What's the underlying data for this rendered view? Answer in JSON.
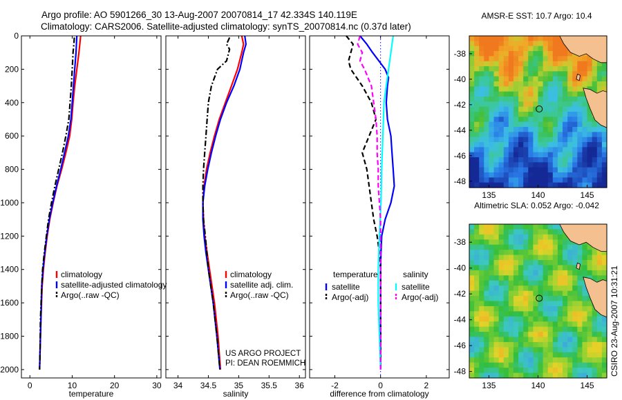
{
  "figure": {
    "title_line1": "Argo profile: AO 5901266_30 13-Aug-2007 20070814_17 42.334S 140.119E",
    "title_line2": "Climatology: CARS2006. Satellite-adjusted climatology: synTS_20070814.nc (0.37d later)",
    "credit_line1": "US ARGO PROJECT",
    "credit_line2": "PI: DEAN ROEMMICH",
    "side_label": "CSIRO 23-Aug-2007 10:31:21"
  },
  "colors": {
    "red": "#ff0000",
    "blue": "#0000ff",
    "black": "#000000",
    "cyan": "#00ffff",
    "magenta": "#ff00ff",
    "land": "#f5c090"
  },
  "chart_data": [
    {
      "type": "line",
      "xlabel": "temperature",
      "xlim": [
        -2,
        31
      ],
      "ylim": [
        2050,
        0
      ],
      "xticks": [
        0,
        10,
        20,
        30
      ],
      "xtick_labels": [
        "0",
        "10",
        "20",
        "30"
      ],
      "yticks": [
        0,
        200,
        400,
        600,
        800,
        1000,
        1200,
        1400,
        1600,
        1800,
        2000
      ],
      "ytick_labels": [
        "0",
        "200",
        "400",
        "600",
        "800",
        "1000",
        "1200",
        "1400",
        "1600",
        "1800",
        "2000"
      ],
      "legend": {
        "position": "lower-right",
        "entries": [
          "climatology",
          "satellite-adjusted climatology",
          "Argo(..raw -QC)"
        ]
      },
      "series": [
        {
          "name": "climatology",
          "color": "red",
          "style": "solid",
          "y": [
            0,
            100,
            200,
            300,
            400,
            500,
            600,
            700,
            800,
            900,
            1000,
            1100,
            1200,
            1300,
            1400,
            1500,
            1700,
            1900,
            2000
          ],
          "x": [
            12.0,
            11.6,
            11.1,
            10.6,
            10.2,
            9.9,
            9.4,
            8.5,
            7.5,
            6.4,
            5.5,
            4.7,
            4.1,
            3.6,
            3.2,
            2.9,
            2.6,
            2.4,
            2.3
          ]
        },
        {
          "name": "satellite-adjusted climatology",
          "color": "blue",
          "style": "solid",
          "y": [
            0,
            100,
            200,
            300,
            400,
            500,
            600,
            700,
            800,
            900,
            1000,
            1100,
            1200,
            1300,
            1400,
            1500,
            1700,
            1900,
            2000
          ],
          "x": [
            11.1,
            10.9,
            10.6,
            10.3,
            10.0,
            9.7,
            9.1,
            8.2,
            7.3,
            6.3,
            5.4,
            4.6,
            4.0,
            3.5,
            3.1,
            2.8,
            2.6,
            2.4,
            2.3
          ]
        },
        {
          "name": "Argo(..raw -QC)",
          "color": "black",
          "style": "dashdot",
          "y": [
            10,
            50,
            100,
            150,
            200,
            300,
            400,
            500,
            600,
            700,
            800,
            900,
            1000,
            1100,
            1200,
            1300,
            1400,
            1500,
            1700,
            1900,
            2000
          ],
          "x": [
            10.5,
            10.4,
            10.2,
            10.1,
            10.0,
            9.8,
            9.5,
            9.2,
            8.5,
            7.7,
            6.8,
            5.9,
            5.1,
            4.4,
            3.9,
            3.4,
            3.0,
            2.8,
            2.5,
            2.4,
            2.3
          ]
        }
      ]
    },
    {
      "type": "line",
      "xlabel": "salinity",
      "xlim": [
        33.8,
        36.1
      ],
      "ylim": [
        2050,
        0
      ],
      "xticks": [
        34,
        34.5,
        35,
        35.5,
        36
      ],
      "xtick_labels": [
        "34",
        "34.5",
        "35",
        "35.5",
        "36"
      ],
      "legend": {
        "position": "lower-right",
        "entries": [
          "climatology",
          "satellite adj. clim.",
          "Argo(..raw -QC)"
        ]
      },
      "series": [
        {
          "name": "climatology",
          "color": "red",
          "style": "solid",
          "y": [
            0,
            50,
            100,
            200,
            300,
            400,
            500,
            600,
            700,
            800,
            900,
            1000,
            1100,
            1200,
            1300,
            1400,
            1600,
            1800,
            2000
          ],
          "x": [
            35.05,
            35.08,
            35.05,
            34.98,
            34.88,
            34.78,
            34.68,
            34.6,
            34.53,
            34.47,
            34.43,
            34.41,
            34.42,
            34.44,
            34.48,
            34.52,
            34.6,
            34.66,
            34.7
          ]
        },
        {
          "name": "satellite adj. clim.",
          "color": "blue",
          "style": "solid",
          "y": [
            0,
            50,
            100,
            200,
            300,
            400,
            500,
            600,
            700,
            800,
            900,
            1000,
            1100,
            1200,
            1300,
            1400,
            1600,
            1800,
            2000
          ],
          "x": [
            35.1,
            35.12,
            35.08,
            35.02,
            34.92,
            34.8,
            34.7,
            34.62,
            34.55,
            34.49,
            34.44,
            34.41,
            34.41,
            34.43,
            34.46,
            34.5,
            34.58,
            34.64,
            34.69
          ]
        },
        {
          "name": "Argo(..raw -QC)",
          "color": "black",
          "style": "dashdot",
          "y": [
            10,
            50,
            80,
            150,
            200,
            300,
            400,
            500,
            600,
            700,
            800,
            900,
            1000,
            1100,
            1200,
            1400,
            1600,
            1800,
            2000
          ],
          "x": [
            34.85,
            34.8,
            34.85,
            34.8,
            34.65,
            34.55,
            34.5,
            34.48,
            34.46,
            34.44,
            34.42,
            34.41,
            34.41,
            34.42,
            34.45,
            34.5,
            34.58,
            34.64,
            34.69
          ]
        }
      ]
    },
    {
      "type": "line",
      "xlabel": "difference from climatology",
      "xlim": [
        -3.1,
        3.0
      ],
      "ylim": [
        2050,
        0
      ],
      "xticks": [
        -2,
        0,
        2
      ],
      "xtick_labels": [
        "-2",
        "0",
        "2"
      ],
      "legend": {
        "position": "lower",
        "groups": [
          {
            "title": "temperature",
            "entries": [
              "satellite",
              "Argo(-adj)"
            ]
          },
          {
            "title": "salinity",
            "entries": [
              "satellite",
              "Argo(-adj)"
            ]
          }
        ]
      },
      "series": [
        {
          "name": "temperature satellite",
          "color": "blue",
          "style": "solid",
          "y": [
            0,
            50,
            100,
            200,
            250,
            300,
            400,
            500,
            600,
            700,
            800,
            900,
            1000,
            1100,
            1200,
            1300,
            1400,
            1600,
            1800,
            2000
          ],
          "x": [
            -0.9,
            -0.6,
            -0.35,
            0.2,
            0.35,
            0.3,
            0.25,
            0.3,
            0.45,
            0.5,
            0.55,
            0.6,
            0.45,
            0.2,
            0.05,
            0.02,
            0.0,
            0.0,
            0.0,
            0.0
          ]
        },
        {
          "name": "temperature Argo(-adj)",
          "color": "black",
          "style": "dashed",
          "y": [
            0,
            50,
            100,
            150,
            200,
            300,
            400,
            500,
            600,
            700,
            800,
            900,
            1000,
            1100,
            1200,
            1300,
            1400,
            1600,
            1800,
            2000
          ],
          "x": [
            -1.5,
            -1.2,
            -1.3,
            -1.4,
            -1.3,
            -0.8,
            -0.4,
            -0.2,
            -0.5,
            -0.8,
            -0.6,
            -0.5,
            -0.4,
            -0.3,
            -0.15,
            -0.05,
            0.0,
            0.0,
            0.0,
            0.0
          ]
        },
        {
          "name": "salinity satellite",
          "color": "cyan",
          "style": "solid",
          "y": [
            0,
            50,
            100,
            200,
            300,
            400,
            600,
            800,
            1000,
            1200,
            1400,
            1600,
            1800,
            2000
          ],
          "x": [
            0.55,
            0.5,
            0.45,
            0.35,
            0.25,
            0.15,
            0.1,
            0.05,
            0.02,
            -0.05,
            -0.1,
            -0.1,
            -0.05,
            0.0
          ]
        },
        {
          "name": "salinity Argo(-adj)",
          "color": "magenta",
          "style": "dashed",
          "y": [
            0,
            50,
            100,
            150,
            200,
            300,
            400,
            500,
            600,
            700,
            800,
            900,
            1000,
            1100,
            1200,
            1400,
            1600,
            1800,
            2000
          ],
          "x": [
            -0.9,
            -1.0,
            -0.8,
            -0.9,
            -0.7,
            -0.4,
            -0.3,
            -0.2,
            -0.15,
            -0.15,
            -0.1,
            -0.1,
            -0.05,
            0.0,
            0.0,
            0.0,
            0.0,
            0.0,
            0.0
          ]
        }
      ]
    },
    {
      "type": "heatmap",
      "title": "AMSR-E SST: 10.7 Argo: 10.4",
      "xlim": [
        133,
        147
      ],
      "ylim": [
        -48.5,
        -36.6
      ],
      "xticks": [
        135,
        140,
        145
      ],
      "xtick_labels": [
        "135",
        "140",
        "145"
      ],
      "yticks": [
        -38,
        -40,
        -42,
        -44,
        -46,
        -48
      ],
      "ytick_labels": [
        "-38",
        "-40",
        "-42",
        "-44",
        "-46",
        "-48"
      ],
      "marker": {
        "lon": 140.119,
        "lat": -42.334
      }
    },
    {
      "type": "heatmap",
      "title": "Altimetric SLA: 0.052 Argo: -0.042",
      "xlim": [
        133,
        147
      ],
      "ylim": [
        -48.5,
        -36.6
      ],
      "xticks": [
        135,
        140,
        145
      ],
      "xtick_labels": [
        "135",
        "140",
        "145"
      ],
      "yticks": [
        -38,
        -40,
        -42,
        -44,
        -46,
        -48
      ],
      "ytick_labels": [
        "-38",
        "-40",
        "-42",
        "-44",
        "-46",
        "-48"
      ],
      "marker": {
        "lon": 140.119,
        "lat": -42.334
      }
    }
  ]
}
